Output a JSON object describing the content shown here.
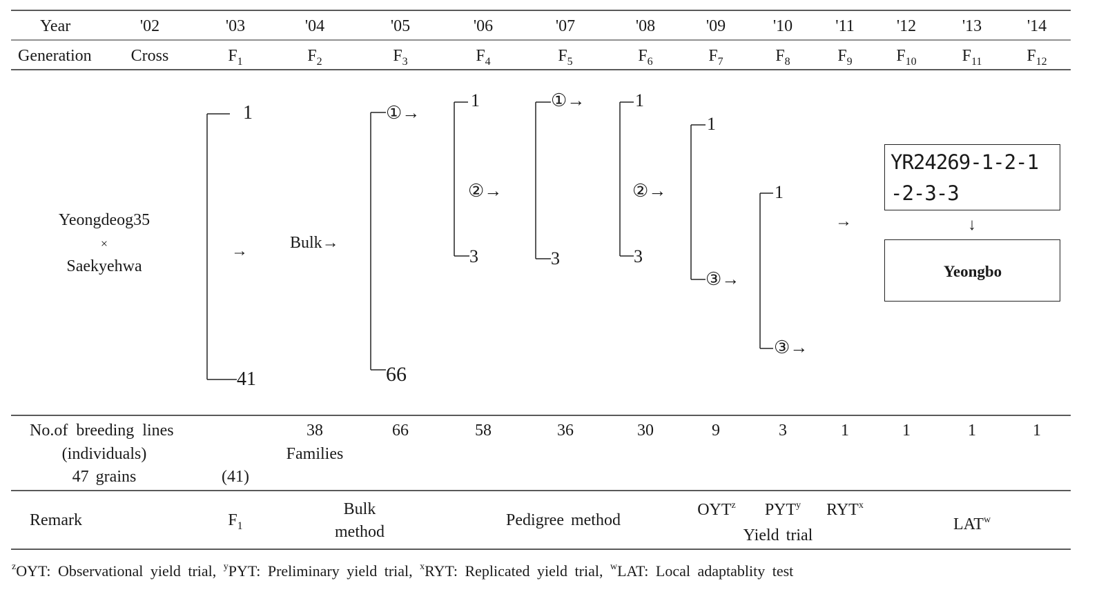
{
  "header": {
    "year_label": "Year",
    "generation_label": "Generation",
    "years": [
      "'02",
      "'03",
      "'04",
      "'05",
      "'06",
      "'07",
      "'08",
      "'09",
      "'10",
      "'11",
      "'12",
      "'13",
      "'14"
    ],
    "generations": [
      {
        "base": "Cross",
        "sub": ""
      },
      {
        "base": "F",
        "sub": "1"
      },
      {
        "base": "F",
        "sub": "2"
      },
      {
        "base": "F",
        "sub": "3"
      },
      {
        "base": "F",
        "sub": "4"
      },
      {
        "base": "F",
        "sub": "5"
      },
      {
        "base": "F",
        "sub": "6"
      },
      {
        "base": "F",
        "sub": "7"
      },
      {
        "base": "F",
        "sub": "8"
      },
      {
        "base": "F",
        "sub": "9"
      },
      {
        "base": "F",
        "sub": "10"
      },
      {
        "base": "F",
        "sub": "11"
      },
      {
        "base": "F",
        "sub": "12"
      }
    ]
  },
  "diagram": {
    "parent1": "Yeongdeog35",
    "cross_symbol": "×",
    "parent2": "Saekyehwa",
    "arrow": "→",
    "down_arrow": "↓",
    "f1_top": "1",
    "f1_bottom": "41",
    "bulk": "Bulk→",
    "f3_top": "①→",
    "f3_bottom": "66",
    "f4_top": "1",
    "f4_mid": "②→",
    "f4_bottom": "3",
    "f5_top": "①→",
    "f5_bottom": "3",
    "f6_top": "1",
    "f6_mid": "②→",
    "f6_bottom": "3",
    "f7_top": "1",
    "f7_bottom": "③→",
    "f8_top": "1",
    "f8_bottom": "③→",
    "line_code_1": "YR24269-1-2-1",
    "line_code_2": "-2-3-3",
    "variety": "Yeongbo"
  },
  "breeding_lines": {
    "label_1": "No.of breeding lines",
    "label_2": "(individuals)",
    "seed_count": "47 grains",
    "f1_count": "(41)",
    "families_count": "38",
    "families_label": "Families",
    "counts": [
      "66",
      "58",
      "36",
      "30",
      "9",
      "3",
      "1",
      "1",
      "1",
      "1"
    ]
  },
  "remark": {
    "label": "Remark",
    "f1": {
      "base": "F",
      "sub": "1"
    },
    "bulk_1": "Bulk",
    "bulk_2": "method",
    "pedigree": "Pedigree method",
    "oyt": {
      "base": "OYT",
      "sup": "z"
    },
    "pyt": {
      "base": "PYT",
      "sup": "y"
    },
    "ryt": {
      "base": "RYT",
      "sup": "x"
    },
    "yield_trial": "Yield trial",
    "lat": {
      "base": "LAT",
      "sup": "w"
    }
  },
  "footnote": [
    {
      "sup": "z",
      "text": "OYT: Observational yield trial, "
    },
    {
      "sup": "y",
      "text": "PYT: Preliminary yield trial, "
    },
    {
      "sup": "x",
      "text": "RYT: Replicated yield trial, "
    },
    {
      "sup": "w",
      "text": "LAT: Local adaptablity test"
    }
  ]
}
